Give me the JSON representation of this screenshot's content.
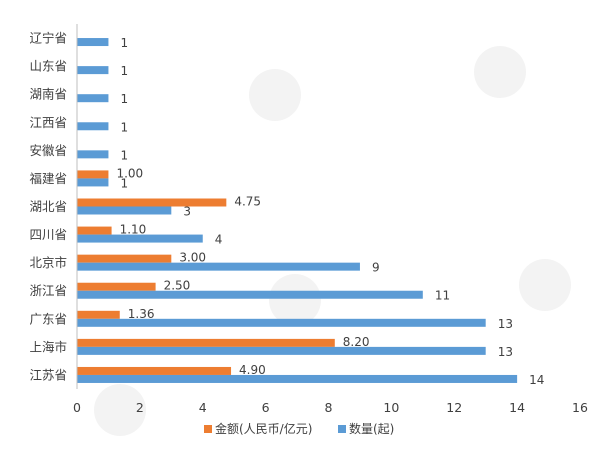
{
  "chart_data": {
    "type": "bar",
    "orientation": "horizontal",
    "categories": [
      "辽宁省",
      "山东省",
      "湖南省",
      "江西省",
      "安徽省",
      "福建省",
      "湖北省",
      "四川省",
      "北京市",
      "浙江省",
      "广东省",
      "上海市",
      "江苏省"
    ],
    "series": [
      {
        "name": "金额(人民币/亿元)",
        "color": "#ED7D31",
        "values": [
          null,
          null,
          null,
          null,
          null,
          1.0,
          4.75,
          1.1,
          3.0,
          2.5,
          1.36,
          8.2,
          4.9
        ],
        "labels": [
          "",
          "",
          "",
          "",
          "",
          "1.00",
          "4.75",
          "1.10",
          "3.00",
          "2.50",
          "1.36",
          "8.20",
          "4.90"
        ]
      },
      {
        "name": "数量(起)",
        "color": "#5B9BD5",
        "values": [
          1,
          1,
          1,
          1,
          1,
          1,
          3,
          4,
          9,
          11,
          13,
          13,
          14
        ],
        "labels": [
          "1",
          "1",
          "1",
          "1",
          "1",
          "1",
          "3",
          "4",
          "9",
          "11",
          "13",
          "13",
          "14"
        ]
      }
    ],
    "xlim": [
      0,
      16
    ],
    "xticks": [
      "0",
      "2",
      "4",
      "6",
      "8",
      "10",
      "12",
      "14",
      "16"
    ],
    "grid": false,
    "legend_position": "bottom"
  }
}
